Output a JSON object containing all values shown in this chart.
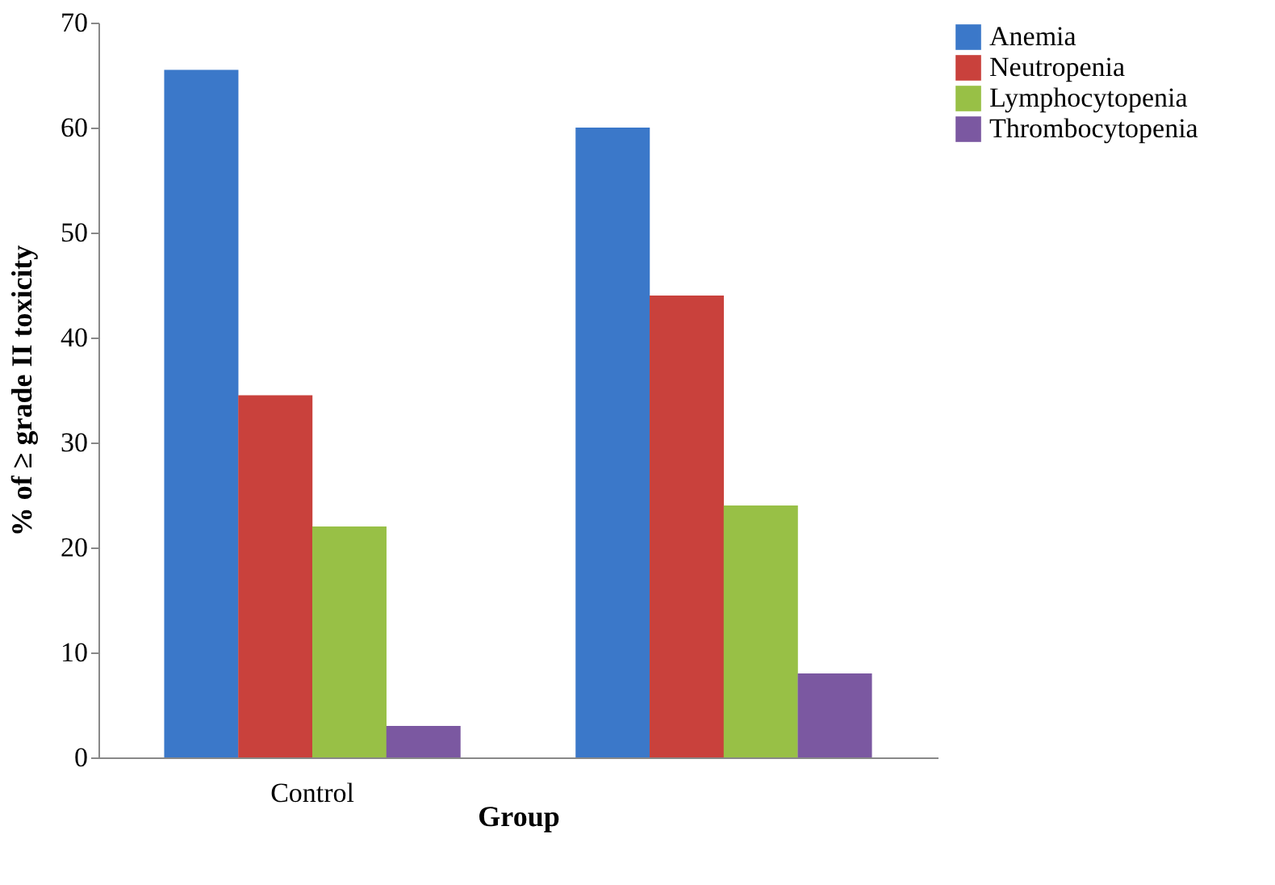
{
  "chart_data": {
    "type": "bar",
    "xlabel": "Group",
    "ylabel": "% of ≥ grade II toxicity",
    "categories": [
      "Control",
      null
    ],
    "series": [
      {
        "name": "Anemia",
        "color": "#3b78c9",
        "values": [
          65.5,
          60
        ]
      },
      {
        "name": "Neutropenia",
        "color": "#c9413c",
        "values": [
          34.5,
          44
        ]
      },
      {
        "name": "Lymphocytopenia",
        "color": "#98c046",
        "values": [
          22,
          24
        ]
      },
      {
        "name": "Thrombocytopenia",
        "color": "#7b58a1",
        "values": [
          3,
          8
        ]
      }
    ],
    "ylim": [
      0,
      70
    ],
    "yticks": [
      0,
      10,
      20,
      30,
      40,
      50,
      60,
      70
    ],
    "grid": false,
    "legend": "right"
  }
}
